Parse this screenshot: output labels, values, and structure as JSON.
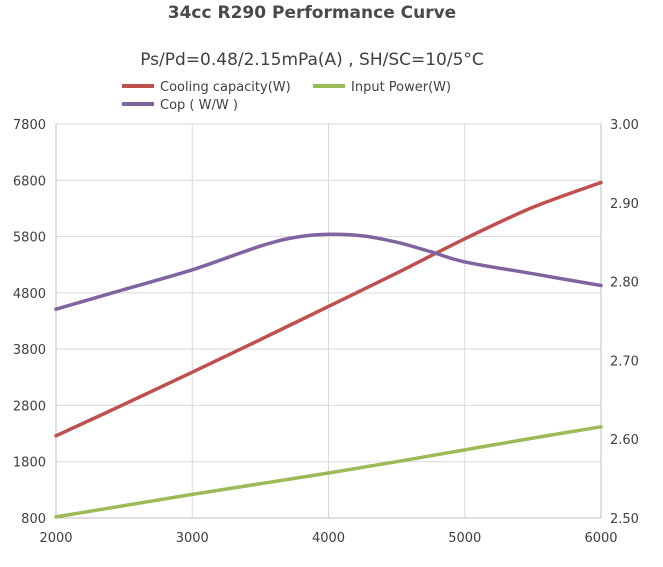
{
  "chart_data": {
    "type": "line",
    "title": "34cc R290 Performance Curve",
    "subtitle": "Ps/Pd=0.48/2.15mPa(A) , SH/SC=10/5°C",
    "x": [
      2000,
      3000,
      4000,
      5000,
      6000
    ],
    "x_ticks": [
      "2000",
      "3000",
      "4000",
      "5000",
      "6000"
    ],
    "xlim": [
      2000,
      6000
    ],
    "y_left": {
      "lim": [
        800,
        7800
      ],
      "ticks": [
        "800",
        "1800",
        "2800",
        "3800",
        "4800",
        "5800",
        "6800",
        "7800"
      ],
      "tick_values": [
        800,
        1800,
        2800,
        3800,
        4800,
        5800,
        6800,
        7800
      ]
    },
    "y_right": {
      "lim": [
        2.5,
        3.0
      ],
      "ticks": [
        "2.50",
        "2.60",
        "2.70",
        "2.80",
        "2.90",
        "3.00"
      ],
      "tick_values": [
        2.5,
        2.6,
        2.7,
        2.8,
        2.9,
        3.0
      ]
    },
    "series": [
      {
        "name": "Cooling capacity(W)",
        "axis": "left",
        "color": "#c0504d",
        "x": [
          2000,
          2500,
          3000,
          3500,
          4000,
          4500,
          5000,
          5500,
          6000
        ],
        "values": [
          2260,
          2820,
          3390,
          3970,
          4560,
          5150,
          5760,
          6320,
          6760
        ]
      },
      {
        "name": "Input Power(W)",
        "axis": "left",
        "color": "#9bbb59",
        "x": [
          2000,
          2500,
          3000,
          3500,
          4000,
          4500,
          5000,
          5500,
          6000
        ],
        "values": [
          820,
          1020,
          1220,
          1410,
          1600,
          1800,
          2010,
          2220,
          2420
        ]
      },
      {
        "name": "Cop ( W/W )",
        "axis": "right",
        "color": "#8064a2",
        "x": [
          2000,
          2500,
          3000,
          3500,
          3750,
          4000,
          4250,
          4500,
          4750,
          5000,
          5500,
          6000
        ],
        "values": [
          2.765,
          2.79,
          2.815,
          2.845,
          2.856,
          2.86,
          2.858,
          2.85,
          2.838,
          2.825,
          2.81,
          2.795
        ]
      }
    ]
  }
}
